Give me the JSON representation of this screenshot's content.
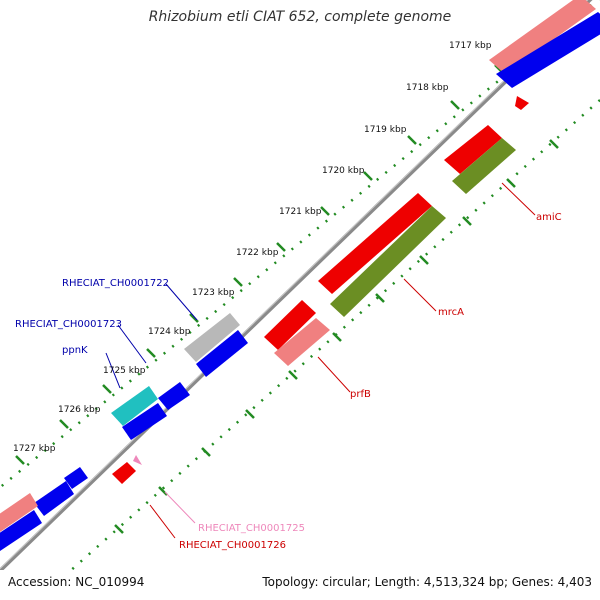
{
  "title": "Rhizobium etli CIAT 652, complete genome",
  "footer": {
    "accession": "Accession: NC_010994",
    "summary": "Topology: circular; Length: 4,513,324 bp; Genes: 4,403"
  },
  "scale_labels": [
    "1717 kbp",
    "1718 kbp",
    "1719 kbp",
    "1720 kbp",
    "1721 kbp",
    "1722 kbp",
    "1723 kbp",
    "1724 kbp",
    "1725 kbp",
    "1726 kbp",
    "1727 kbp"
  ],
  "gene_labels": {
    "amiC": "amiC",
    "mrcA": "mrcA",
    "prfB": "prfB",
    "ch1722": "RHECIAT_CH0001722",
    "ch1723": "RHECIAT_CH0001723",
    "ppnK": "ppnK",
    "ch1725": "RHECIAT_CH0001725",
    "ch1726": "RHECIAT_CH0001726"
  },
  "colors": {
    "red": "#ee0000",
    "pink": "#f08080",
    "blue": "#0000ee",
    "olive": "#6b8e23",
    "grey": "#b8b8b8",
    "cyan": "#20c0c0",
    "backbone": "#808080",
    "ticks": "#228b22",
    "label_blue": "#0000aa",
    "label_red": "#cc0000",
    "label_pink": "#ee88bb"
  }
}
